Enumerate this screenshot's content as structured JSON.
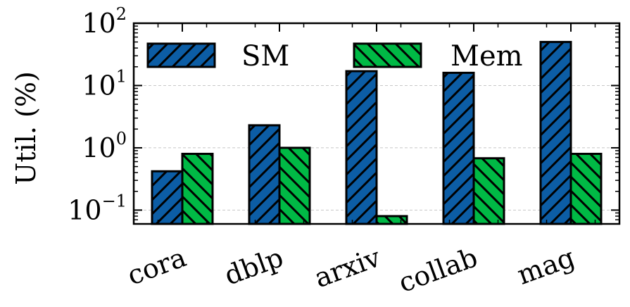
{
  "chart_data": {
    "type": "bar",
    "title": "",
    "xlabel": "",
    "ylabel": "Util. (%)",
    "yscale": "log",
    "ylim": [
      0.06,
      100
    ],
    "yticks": [
      {
        "value": 0.1,
        "base": "10",
        "exp": "−1"
      },
      {
        "value": 1,
        "base": "10",
        "exp": "0"
      },
      {
        "value": 10,
        "base": "10",
        "exp": "1"
      },
      {
        "value": 100,
        "base": "10",
        "exp": "2"
      }
    ],
    "grid": "horizontal-dashed",
    "legend_position": "top",
    "categories": [
      "cora",
      "dblp",
      "arxiv",
      "collab",
      "mag"
    ],
    "series": [
      {
        "name": "SM",
        "color": "#0c5da5",
        "hatch": "forward-diagonal",
        "values": [
          0.42,
          2.3,
          17,
          16,
          50
        ]
      },
      {
        "name": "Mem",
        "color": "#00b945",
        "hatch": "backward-diagonal",
        "values": [
          0.8,
          1.0,
          0.08,
          0.68,
          0.8
        ]
      }
    ]
  }
}
